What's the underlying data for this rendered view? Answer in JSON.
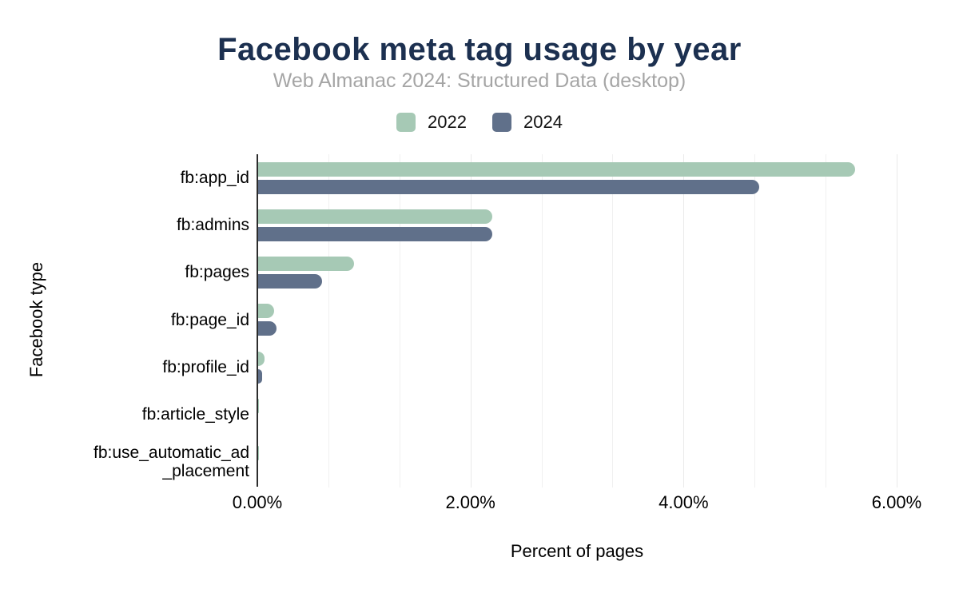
{
  "chart_data": {
    "type": "bar",
    "orientation": "horizontal",
    "title": "Facebook meta tag usage by year",
    "subtitle": "Web Almanac 2024: Structured Data (desktop)",
    "xlabel": "Percent of pages",
    "ylabel": "Facebook type",
    "xlim": [
      0,
      6
    ],
    "x_ticks": [
      "0.00%",
      "2.00%",
      "4.00%",
      "6.00%"
    ],
    "grid": "vertical; minor gridlines every 0.667%, majors every 2%",
    "legend_position": "top-center",
    "categories": [
      "fb:app_id",
      "fb:admins",
      "fb:pages",
      "fb:page_id",
      "fb:profile_id",
      "fb:article_style",
      "fb:use_automatic_ad_placement"
    ],
    "series": [
      {
        "name": "2022",
        "color": "#a6c9b5",
        "values": [
          5.6,
          2.2,
          0.9,
          0.15,
          0.06,
          0.01,
          0.01
        ]
      },
      {
        "name": "2024",
        "color": "#60708a",
        "values": [
          4.7,
          2.2,
          0.6,
          0.17,
          0.04,
          0.0,
          0.0
        ]
      }
    ]
  },
  "colors": {
    "title": "#1c3050",
    "subtitle": "#a5a5a5",
    "axis_line": "#2d2d2d",
    "gridline": "#eaeaea",
    "text": "#000000",
    "background": "#ffffff"
  }
}
